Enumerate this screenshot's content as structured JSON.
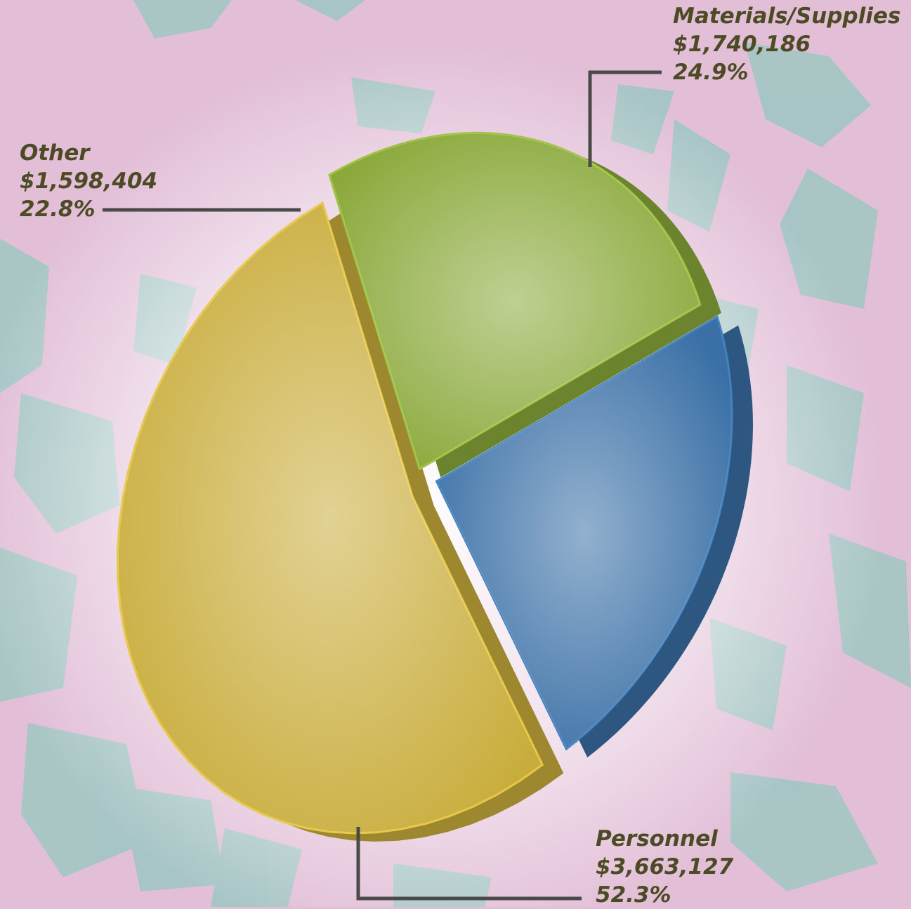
{
  "chart_data": {
    "type": "pie",
    "slices": [
      {
        "name": "Personnel",
        "amount": "$3,663,127",
        "percent_label": "52.3%",
        "value": 52.3,
        "color": "#c9ad3c"
      },
      {
        "name": "Materials/Supplies",
        "amount": "$1,740,186",
        "percent_label": "24.9%",
        "value": 24.9,
        "color": "#8aa93a"
      },
      {
        "name": "Other",
        "amount": "$1,598,404",
        "percent_label": "22.8%",
        "value": 22.8,
        "color": "#3a70a6"
      }
    ]
  },
  "colors": {
    "background": "#e2bfd7",
    "map_shapes": "#9fc7c2",
    "label_text": "#4d4a26",
    "leader_line": "#4a4a48"
  }
}
